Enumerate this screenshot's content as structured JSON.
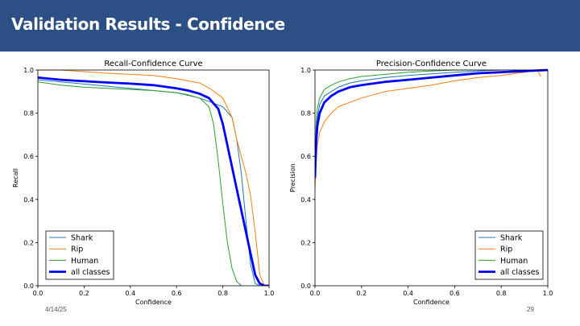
{
  "slide": {
    "title": "Validation Results - Confidence",
    "date": "4/14/25",
    "page_number": "29"
  },
  "colors": {
    "header_bg": "#2c4f85",
    "shark": "#1f77b4",
    "rip": "#ff7f0e",
    "human": "#2ca02c",
    "all_classes": "#0000ff"
  },
  "chart_data": [
    {
      "type": "line",
      "title": "Recall-Confidence Curve",
      "xlabel": "Confidence",
      "ylabel": "Recall",
      "xlim": [
        0,
        1
      ],
      "ylim": [
        0,
        1
      ],
      "xticks": [
        "0.0",
        "0.2",
        "0.4",
        "0.6",
        "0.8",
        "1.0"
      ],
      "yticks": [
        "0.0",
        "0.2",
        "0.4",
        "0.6",
        "0.8",
        "1.0"
      ],
      "legend_position": "lower-left",
      "series": [
        {
          "name": "Shark",
          "color": "#1f77b4",
          "x": [
            0,
            0.1,
            0.2,
            0.3,
            0.4,
            0.5,
            0.6,
            0.7,
            0.75,
            0.8,
            0.84,
            0.86,
            0.88,
            0.9,
            0.92,
            0.94,
            0.96
          ],
          "y": [
            0.955,
            0.945,
            0.935,
            0.925,
            0.915,
            0.905,
            0.895,
            0.87,
            0.85,
            0.83,
            0.78,
            0.68,
            0.52,
            0.3,
            0.1,
            0.01,
            0.0
          ]
        },
        {
          "name": "Rip",
          "color": "#ff7f0e",
          "x": [
            0,
            0.1,
            0.3,
            0.5,
            0.6,
            0.7,
            0.75,
            0.8,
            0.84,
            0.86,
            0.88,
            0.9,
            0.92,
            0.94,
            0.96,
            0.98
          ],
          "y": [
            1.0,
            1.0,
            0.985,
            0.975,
            0.96,
            0.94,
            0.91,
            0.87,
            0.78,
            0.68,
            0.6,
            0.52,
            0.42,
            0.25,
            0.05,
            0.0
          ]
        },
        {
          "name": "Human",
          "color": "#2ca02c",
          "x": [
            0,
            0.1,
            0.2,
            0.3,
            0.4,
            0.5,
            0.6,
            0.65,
            0.7,
            0.74,
            0.76,
            0.78,
            0.8,
            0.82,
            0.84,
            0.86,
            0.88
          ],
          "y": [
            0.945,
            0.93,
            0.92,
            0.915,
            0.91,
            0.905,
            0.895,
            0.885,
            0.87,
            0.83,
            0.75,
            0.58,
            0.38,
            0.2,
            0.08,
            0.02,
            0.0
          ]
        },
        {
          "name": "all classes",
          "color": "#0000ff",
          "x": [
            0,
            0.1,
            0.2,
            0.3,
            0.4,
            0.5,
            0.6,
            0.65,
            0.7,
            0.74,
            0.78,
            0.8,
            0.83,
            0.86,
            0.89,
            0.92,
            0.94,
            0.96,
            0.98,
            1.0
          ],
          "y": [
            0.965,
            0.955,
            0.948,
            0.942,
            0.937,
            0.93,
            0.915,
            0.905,
            0.89,
            0.87,
            0.82,
            0.75,
            0.6,
            0.45,
            0.3,
            0.15,
            0.05,
            0.01,
            0.0,
            0.0
          ]
        }
      ]
    },
    {
      "type": "line",
      "title": "Precision-Confidence Curve",
      "xlabel": "Confidence",
      "ylabel": "Precision",
      "xlim": [
        0,
        1
      ],
      "ylim": [
        0,
        1
      ],
      "xticks": [
        "0.0",
        "0.2",
        "0.4",
        "0.6",
        "0.8",
        "1.0"
      ],
      "yticks": [
        "0.0",
        "0.2",
        "0.4",
        "0.6",
        "0.8",
        "1.0"
      ],
      "legend_position": "lower-right",
      "series": [
        {
          "name": "Shark",
          "color": "#1f77b4",
          "x": [
            0,
            0.005,
            0.01,
            0.02,
            0.04,
            0.07,
            0.1,
            0.15,
            0.2,
            0.3,
            0.4,
            0.5,
            0.6,
            0.7,
            0.8,
            0.9,
            1.0
          ],
          "y": [
            0.5,
            0.7,
            0.78,
            0.84,
            0.88,
            0.9,
            0.92,
            0.94,
            0.95,
            0.965,
            0.975,
            0.982,
            0.99,
            0.995,
            1.0,
            1.0,
            1.0
          ]
        },
        {
          "name": "Rip",
          "color": "#ff7f0e",
          "x": [
            0,
            0.005,
            0.01,
            0.02,
            0.04,
            0.07,
            0.1,
            0.15,
            0.2,
            0.3,
            0.4,
            0.5,
            0.6,
            0.7,
            0.8,
            0.9,
            0.95,
            0.96,
            0.97
          ],
          "y": [
            0.45,
            0.58,
            0.65,
            0.71,
            0.76,
            0.8,
            0.83,
            0.85,
            0.87,
            0.9,
            0.915,
            0.93,
            0.95,
            0.965,
            0.975,
            0.99,
            1.0,
            0.99,
            0.97
          ]
        },
        {
          "name": "Human",
          "color": "#2ca02c",
          "x": [
            0,
            0.005,
            0.01,
            0.02,
            0.04,
            0.07,
            0.1,
            0.15,
            0.2,
            0.3,
            0.4,
            0.5,
            0.6,
            0.7,
            0.8,
            0.9,
            1.0
          ],
          "y": [
            0.55,
            0.75,
            0.82,
            0.87,
            0.91,
            0.93,
            0.945,
            0.96,
            0.97,
            0.98,
            0.99,
            0.995,
            1.0,
            1.0,
            1.0,
            1.0,
            1.0
          ]
        },
        {
          "name": "all classes",
          "color": "#0000ff",
          "x": [
            0,
            0.005,
            0.01,
            0.02,
            0.04,
            0.07,
            0.1,
            0.15,
            0.2,
            0.3,
            0.4,
            0.5,
            0.6,
            0.7,
            0.8,
            0.9,
            1.0
          ],
          "y": [
            0.5,
            0.66,
            0.74,
            0.8,
            0.85,
            0.88,
            0.9,
            0.92,
            0.93,
            0.945,
            0.955,
            0.965,
            0.975,
            0.985,
            0.99,
            0.995,
            1.0
          ]
        }
      ]
    }
  ]
}
